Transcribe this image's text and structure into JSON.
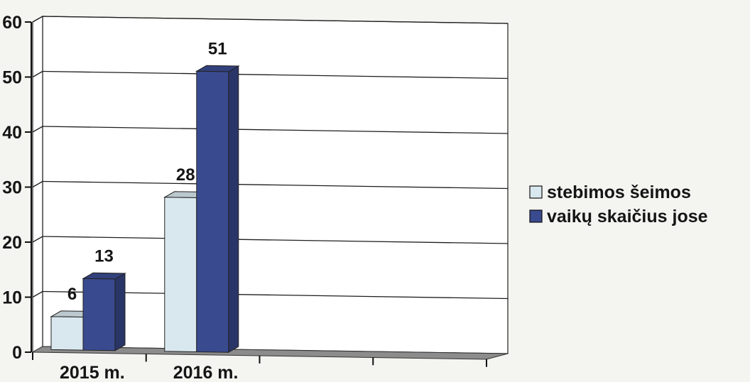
{
  "chart_data": {
    "type": "bar",
    "categories": [
      "2015 m.",
      "2016 m."
    ],
    "series": [
      {
        "name": "stebimos šeimos",
        "values": [
          6,
          28
        ],
        "color": "#d9e8ef"
      },
      {
        "name": "vaikų skaičius jose",
        "values": [
          13,
          51
        ],
        "color": "#3a4a8f"
      }
    ],
    "ylim": [
      0,
      60
    ],
    "yticks": [
      0,
      10,
      20,
      30,
      40,
      50,
      60
    ],
    "grid": true,
    "legend_position": "right",
    "three_d": true,
    "colors": {
      "plot_wall": "#ffffff",
      "floor": "#8c8c8c",
      "gridline": "#1e1e1e",
      "text": "#151515"
    }
  }
}
